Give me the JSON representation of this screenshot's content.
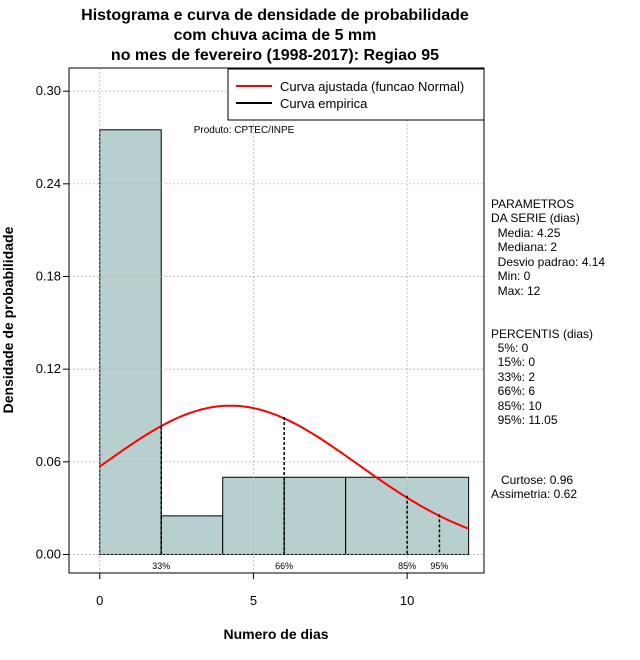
{
  "chart_data": {
    "type": "bar",
    "title_lines": [
      "Histograma e curva de densidade de probabilidade",
      "com chuva acima de 5 mm",
      "no mes de fevereiro (1998-2017): Regiao 95"
    ],
    "xlabel": "Numero de dias",
    "ylabel": "Densidade de probabilidade",
    "xlim": [
      -1,
      12.5
    ],
    "ylim": [
      -0.012,
      0.315
    ],
    "x_ticks": [
      0,
      5,
      10
    ],
    "y_ticks": [
      0.0,
      0.06,
      0.12,
      0.18,
      0.24,
      0.3
    ],
    "y_tick_labels": [
      "0.00",
      "0.06",
      "0.12",
      "0.18",
      "0.24",
      "0.30"
    ],
    "grid": true,
    "bins": [
      {
        "x0": 0,
        "x1": 2,
        "density": 0.275
      },
      {
        "x0": 2,
        "x1": 4,
        "density": 0.025
      },
      {
        "x0": 4,
        "x1": 6,
        "density": 0.05
      },
      {
        "x0": 6,
        "x1": 8,
        "density": 0.05
      },
      {
        "x0": 8,
        "x1": 12,
        "density": 0.05
      }
    ],
    "bar_color": "#b8cfcf",
    "normal_curve": {
      "name": "Curva ajustada (funcao Normal)",
      "mean": 4.25,
      "sd": 4.14,
      "x_range": [
        0,
        12
      ],
      "color": "#ff0000"
    },
    "empirical_curve": {
      "name": "Curva empirica",
      "color": "#000000"
    },
    "legend_position": "top-right",
    "percentile_markers": [
      {
        "label": "33%",
        "x": 2,
        "y": 0.083
      },
      {
        "label": "66%",
        "x": 6,
        "y": 0.089
      },
      {
        "label": "85%",
        "x": 10,
        "y": 0.038
      },
      {
        "label": "95%",
        "x": 11.05,
        "y": 0.026
      }
    ],
    "annotation": "Produto: CPTEC/INPE"
  },
  "side_panel": {
    "params_title": "PARAMETROS\nDA SERIE (dias)",
    "params_values": "  Media: 4.25\n  Mediana: 2\n  Desvio padrao: 4.14\n  Min: 0\n  Max: 12",
    "percentis_title": "PERCENTIS (dias)",
    "percentis_values": "  5%: 0\n  15%: 0\n  33%: 2\n  66%: 6\n  85%: 10\n  95%: 11.05",
    "shape_stats": "   Curtose: 0.96\nAssimetria: 0.62"
  }
}
